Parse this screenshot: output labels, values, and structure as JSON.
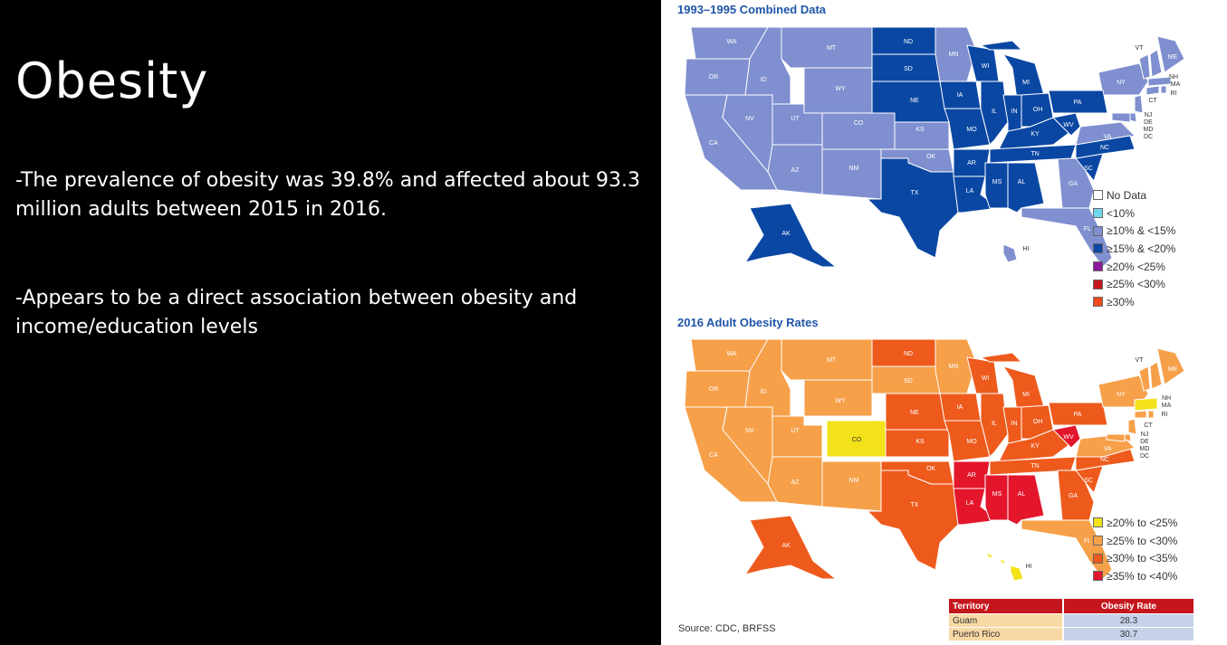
{
  "slide": {
    "title": "Obesity",
    "bullet1": "-The prevalence of obesity was 39.8% and affected about 93.3 million adults between 2015 in 2016.",
    "bullet2": "-Appears to be a direct association between obesity and income/education levels"
  },
  "map1": {
    "title": "1993–1995 Combined Data",
    "legend": [
      {
        "label": "No Data",
        "color": "#ffffff"
      },
      {
        "label": "<10%",
        "color": "#6fd6ee"
      },
      {
        "label": "≥10% & <15%",
        "color": "#7f8fcf"
      },
      {
        "label": "≥15% & <20%",
        "color": "#0a47a3"
      },
      {
        "label": "≥20% <25%",
        "color": "#8b1a9b"
      },
      {
        "label": "≥25% <30%",
        "color": "#c5161d"
      },
      {
        "label": "≥30%",
        "color": "#ee4a1f"
      }
    ],
    "colors": {
      "light": "#7f8fcf",
      "dark": "#0a47a3"
    },
    "states": {
      "WA": "WA",
      "OR": "OR",
      "CA": "CA",
      "ID": "ID",
      "NV": "NV",
      "MT": "MT",
      "WY": "WY",
      "UT": "UT",
      "AZ": "AZ",
      "CO": "CO",
      "NM": "NM",
      "ND": "ND",
      "SD": "SD",
      "NE": "NE",
      "KS": "KS",
      "OK": "OK",
      "TX": "TX",
      "MN": "MN",
      "IA": "IA",
      "MO": "MO",
      "AR": "AR",
      "LA": "LA",
      "WI": "WI",
      "IL": "IL",
      "MI": "MI",
      "IN": "IN",
      "OH": "OH",
      "KY": "KY",
      "TN": "TN",
      "MS": "MS",
      "AL": "AL",
      "GA": "GA",
      "FL": "FL",
      "SC": "SC",
      "NC": "NC",
      "VA": "VA",
      "WV": "WV",
      "PA": "PA",
      "NY": "NY",
      "VT": "VT",
      "NH": "NH",
      "ME": "ME",
      "MA": "MA",
      "CT": "CT",
      "RI": "RI",
      "NJ": "NJ",
      "DE": "DE",
      "MD": "MD",
      "DC": "DC",
      "AK": "AK",
      "HI": "HI"
    }
  },
  "map2": {
    "title": "2016 Adult Obesity Rates",
    "legend": [
      {
        "label": "≥20% to <25%",
        "color": "#f3e21a"
      },
      {
        "label": "≥25% to <30%",
        "color": "#f6a04a"
      },
      {
        "label": "≥30% to <35%",
        "color": "#ee5a1c"
      },
      {
        "label": "≥35% to <40%",
        "color": "#e3162c"
      }
    ],
    "colors": {
      "yellow": "#f3e21a",
      "light": "#f6a04a",
      "mid": "#ee5a1c",
      "red": "#e3162c"
    }
  },
  "source": "Source:  CDC, BRFSS",
  "territory_table": {
    "header": [
      "Territory",
      "Obesity Rate"
    ],
    "rows": [
      {
        "name": "Guam",
        "rate": "28.3"
      },
      {
        "name": "Puerto Rico",
        "rate": "30.7"
      }
    ]
  }
}
